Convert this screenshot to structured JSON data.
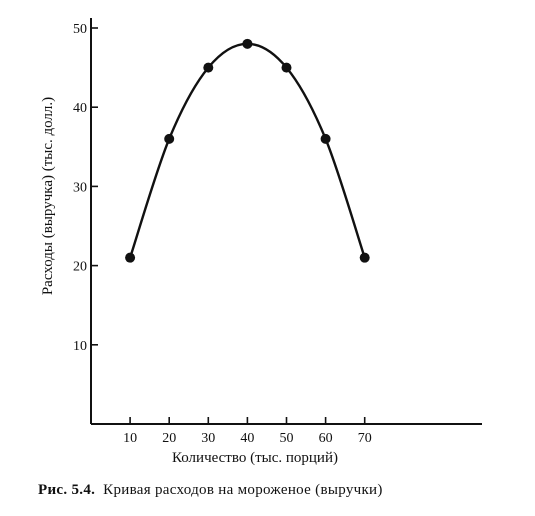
{
  "chart_data": {
    "type": "line",
    "x": [
      10,
      20,
      30,
      40,
      50,
      60,
      70
    ],
    "series": [
      {
        "values": [
          21,
          36,
          45,
          48,
          45,
          36,
          21
        ],
        "smooth": true,
        "markers": true
      }
    ],
    "xlabel": "Количество (тыс. порций)",
    "ylabel": "Расходы (выручка) (тыс. долл.)",
    "xticks": [
      10,
      20,
      30,
      40,
      50,
      60,
      70
    ],
    "yticks": [
      10,
      20,
      30,
      40,
      50
    ],
    "xlim": [
      0,
      100
    ],
    "ylim": [
      0,
      50
    ],
    "grid": false,
    "line_color": "#111111"
  },
  "caption": {
    "number": "Рис. 5.4.",
    "text": "Кривая расходов на мороженое (выручки)"
  }
}
